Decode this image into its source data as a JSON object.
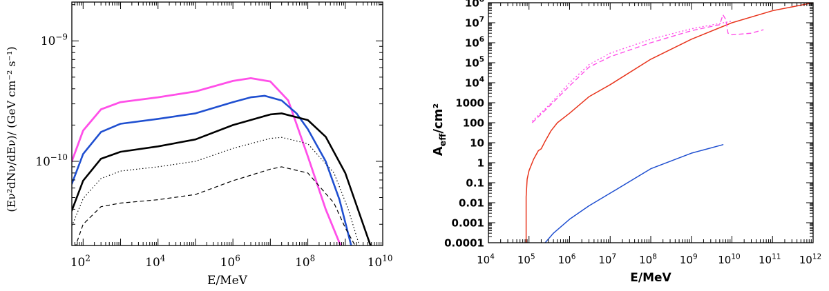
{
  "chart_data": [
    {
      "type": "line",
      "title": "",
      "xlabel": "E/MeV",
      "ylabel": "(Eν²dNν/dEν)/ (GeV cm⁻² s⁻¹)",
      "xscale": "log",
      "yscale": "log",
      "xlim": [
        50,
        10000000000
      ],
      "ylim": [
        2e-11,
        2.1e-09
      ],
      "x_tick_labels": [
        {
          "value": 100,
          "base": "10",
          "exp": "2"
        },
        {
          "value": 10000,
          "base": "10",
          "exp": "4"
        },
        {
          "value": 1000000,
          "base": "10",
          "exp": "6"
        },
        {
          "value": 100000000,
          "base": "10",
          "exp": "8"
        },
        {
          "value": 10000000000,
          "base": "10",
          "exp": "10"
        }
      ],
      "y_tick_labels": [
        {
          "value": 1e-10,
          "base": "10",
          "exp": "−10"
        },
        {
          "value": 1e-09,
          "base": "10",
          "exp": "−9"
        }
      ],
      "series": [
        {
          "name": "magenta",
          "color": "#ff4fe8",
          "dash": "solid",
          "width": 2.8,
          "x": [
            50,
            100,
            300,
            1000,
            10000,
            100000,
            1000000,
            3000000,
            10000000,
            30000000,
            100000000,
            300000000,
            800000000
          ],
          "y": [
            1e-10,
            1.8e-10,
            2.7e-10,
            3.1e-10,
            3.4e-10,
            3.8e-10,
            4.65e-10,
            4.9e-10,
            4.6e-10,
            3.2e-10,
            1.1e-10,
            4e-11,
            1.9e-11
          ]
        },
        {
          "name": "blue",
          "color": "#1f4fd0",
          "dash": "solid",
          "width": 2.6,
          "x": [
            50,
            100,
            300,
            1000,
            10000,
            100000,
            1000000,
            3000000,
            7000000,
            20000000,
            50000000,
            100000000,
            300000000,
            700000000,
            1500000000
          ],
          "y": [
            6.5e-11,
            1.15e-10,
            1.75e-10,
            2.05e-10,
            2.25e-10,
            2.5e-10,
            3.1e-10,
            3.4e-10,
            3.5e-10,
            3.2e-10,
            2.5e-10,
            1.85e-10,
            1e-10,
            4.8e-11,
            1.9e-11
          ]
        },
        {
          "name": "black",
          "color": "#000000",
          "dash": "solid",
          "width": 2.6,
          "x": [
            50,
            100,
            300,
            1000,
            10000,
            100000,
            1000000,
            10000000,
            20000000,
            100000000,
            300000000,
            1000000000,
            3000000000,
            5000000000
          ],
          "y": [
            3.9e-11,
            6.9e-11,
            1.05e-10,
            1.2e-10,
            1.33e-10,
            1.52e-10,
            2e-10,
            2.45e-10,
            2.5e-10,
            2.2e-10,
            1.6e-10,
            8e-11,
            3e-11,
            1.9e-11
          ]
        },
        {
          "name": "dotted",
          "color": "#000000",
          "dash": "1.5,3",
          "width": 1.2,
          "x": [
            50,
            100,
            300,
            1000,
            10000,
            100000,
            1000000,
            10000000,
            20000000,
            100000000,
            500000000,
            1200000000,
            2500000000
          ],
          "y": [
            2.9e-11,
            4.9e-11,
            7.2e-11,
            8.3e-11,
            9e-11,
            1e-10,
            1.28e-10,
            1.55e-10,
            1.58e-10,
            1.4e-10,
            8e-11,
            4e-11,
            1.9e-11
          ]
        },
        {
          "name": "dashed",
          "color": "#000000",
          "dash": "6,4",
          "width": 1.2,
          "x": [
            60,
            100,
            300,
            1000,
            10000,
            100000,
            1000000,
            10000000,
            20000000,
            100000000,
            500000000,
            1000000000,
            2000000000
          ],
          "y": [
            1.9e-11,
            3e-11,
            4.2e-11,
            4.5e-11,
            4.8e-11,
            5.3e-11,
            6.9e-11,
            8.6e-11,
            9e-11,
            8e-11,
            4.5e-11,
            2.8e-11,
            1.9e-11
          ]
        }
      ]
    },
    {
      "type": "line",
      "title": "",
      "xlabel": "E/MeV",
      "ylabel": "A_eff/cm²",
      "ylabel_main": "A",
      "ylabel_sub": "eff",
      "ylabel_rest": "/cm²",
      "xscale": "log",
      "yscale": "log",
      "xlim": [
        10000,
        1000000000000
      ],
      "ylim": [
        0.0001,
        100000000
      ],
      "x_tick_labels": [
        {
          "value": 10000,
          "base": "10",
          "exp": "4"
        },
        {
          "value": 100000,
          "base": "10",
          "exp": "5"
        },
        {
          "value": 1000000,
          "base": "10",
          "exp": "6"
        },
        {
          "value": 10000000,
          "base": "10",
          "exp": "7"
        },
        {
          "value": 100000000,
          "base": "10",
          "exp": "8"
        },
        {
          "value": 1000000000,
          "base": "10",
          "exp": "9"
        },
        {
          "value": 10000000000,
          "base": "10",
          "exp": "10"
        },
        {
          "value": 100000000000,
          "base": "10",
          "exp": "11"
        },
        {
          "value": 1000000000000,
          "base": "10",
          "exp": "12"
        }
      ],
      "y_tick_labels": [
        {
          "value": 0.0001,
          "text": "0.0001"
        },
        {
          "value": 0.001,
          "text": "0.001"
        },
        {
          "value": 0.01,
          "text": "0.01"
        },
        {
          "value": 0.1,
          "text": "0.1"
        },
        {
          "value": 1,
          "text": "1"
        },
        {
          "value": 10,
          "text": "10"
        },
        {
          "value": 100,
          "text": "100"
        },
        {
          "value": 1000,
          "text": "1000"
        },
        {
          "value": 10000,
          "base": "10",
          "exp": "4"
        },
        {
          "value": 100000,
          "base": "10",
          "exp": "5"
        },
        {
          "value": 1000000,
          "base": "10",
          "exp": "6"
        },
        {
          "value": 10000000,
          "base": "10",
          "exp": "7"
        },
        {
          "value": 100000000,
          "base": "10",
          "exp": "8"
        }
      ],
      "series": [
        {
          "name": "red",
          "color": "#e8341c",
          "dash": "solid",
          "width": 1.5,
          "x": [
            85000,
            85000,
            90000,
            100000,
            130000,
            170000,
            200000,
            250000,
            350000,
            500000,
            1000000,
            3000000,
            10000000,
            100000000,
            1000000000,
            10000000000,
            100000000000,
            1000000000000
          ],
          "y": [
            0.0001,
            0.02,
            0.15,
            0.4,
            1.5,
            4,
            5,
            12,
            40,
            100,
            300,
            2000,
            8000,
            150000,
            1500000,
            10000000,
            40000000,
            100000000
          ]
        },
        {
          "name": "blue",
          "color": "#1f4fd0",
          "dash": "solid",
          "width": 1.5,
          "x": [
            250000,
            400000,
            1000000,
            3000000,
            10000000,
            100000000,
            1000000000,
            6000000000
          ],
          "y": [
            0.0001,
            0.0003,
            0.0015,
            0.007,
            0.03,
            0.5,
            3,
            8
          ]
        },
        {
          "name": "magenta-dotted",
          "color": "#ff4fe8",
          "dash": "2,3",
          "width": 1.4,
          "x": [
            120000,
            300000,
            1000000,
            3000000,
            10000000,
            100000000,
            1000000000,
            10000000000
          ],
          "y": [
            120,
            700,
            10000,
            80000,
            300000,
            1500000,
            5000000,
            12000000
          ]
        },
        {
          "name": "magenta-dashed",
          "color": "#ff4fe8",
          "dash": "7,4",
          "width": 1.4,
          "x": [
            120000,
            300000,
            1000000,
            3000000,
            10000000,
            100000000,
            1000000000,
            5000000000,
            6000000000,
            7000000000,
            8000000000,
            10000000000,
            30000000000,
            60000000000
          ],
          "y": [
            100,
            600,
            7000,
            60000,
            200000,
            1000000,
            4000000,
            8000000,
            25000000,
            15000000,
            3000000,
            2500000,
            3000000,
            4500000
          ]
        }
      ]
    }
  ]
}
